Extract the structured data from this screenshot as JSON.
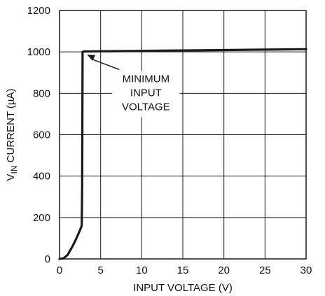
{
  "chart_data": {
    "type": "line",
    "title": "",
    "xlabel": "INPUT VOLTAGE (V)",
    "ylabel": {
      "prefix": "V",
      "subscript": "IN",
      "suffix": " CURRENT (µA)"
    },
    "xlim": [
      0,
      30
    ],
    "ylim": [
      0,
      1200
    ],
    "xticks": [
      "0",
      "5",
      "10",
      "15",
      "20",
      "25",
      "30"
    ],
    "yticks": [
      "0",
      "200",
      "400",
      "600",
      "800",
      "1000",
      "1200"
    ],
    "grid": true,
    "legend": "none",
    "series": [
      {
        "x": [
          0,
          0.5,
          1.0,
          1.5,
          2.0,
          2.5,
          2.7,
          2.75,
          2.8,
          3.0,
          5,
          10,
          15,
          20,
          25,
          30
        ],
        "y": [
          0,
          3,
          20,
          55,
          95,
          140,
          160,
          350,
          1000,
          1002,
          1003,
          1005,
          1007,
          1009,
          1011,
          1013
        ]
      }
    ],
    "annotations": [
      {
        "lines": [
          "MINIMUM",
          "INPUT",
          "VOLTAGE"
        ],
        "point_to": {
          "x": 3,
          "y": 1000
        },
        "text_at": {
          "x": 10,
          "y": 820
        }
      }
    ],
    "colors": {
      "line": "#1a1a1a",
      "grid": "#1a1a1a",
      "text": "#111111"
    }
  }
}
